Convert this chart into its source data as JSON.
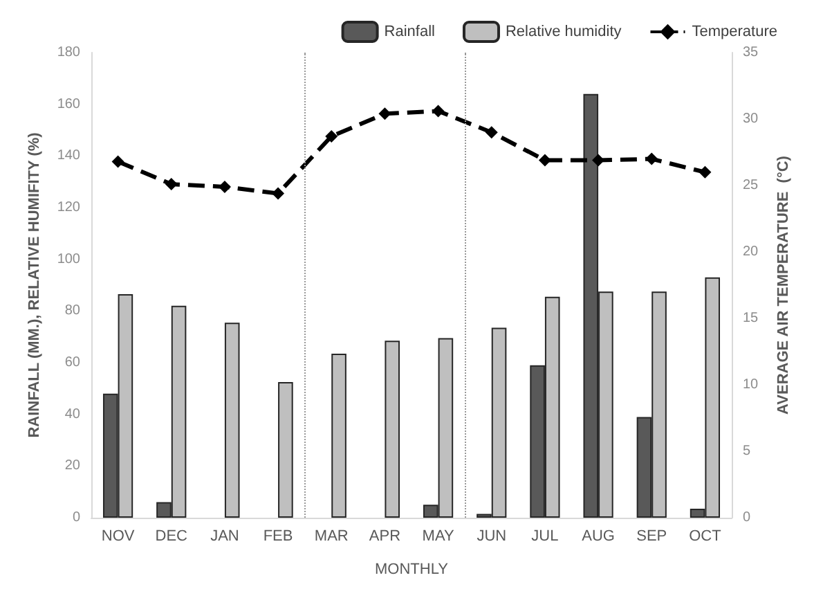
{
  "chart_data": {
    "type": "bar",
    "xlabel": "MONTHLY",
    "ylabel": "RAINFALL (MM.), RELATIVE HUMIFITY (%)",
    "y2label": "AVERAGE AIR TEMPERATURE  (°C)",
    "categories": [
      "NOV",
      "DEC",
      "JAN",
      "FEB",
      "MAR",
      "APR",
      "MAY",
      "JUN",
      "JUL",
      "AUG",
      "SEP",
      "OCT"
    ],
    "series": [
      {
        "name": "Rainfall",
        "color": "#595959",
        "values": [
          48,
          6,
          0,
          0,
          0,
          0,
          5,
          1.5,
          59,
          164,
          39,
          3.5
        ]
      },
      {
        "name": "Relative humidity",
        "color": "#bfbfbf",
        "values": [
          86.5,
          82,
          75.5,
          52.5,
          63.5,
          68.5,
          69.5,
          73.5,
          85.5,
          87.5,
          87.5,
          93
        ]
      },
      {
        "name": "Temperature",
        "type": "line",
        "axis": "y2",
        "color": "#000000",
        "line_style": "dashed",
        "marker": "diamond",
        "values": [
          26.8,
          25.1,
          24.9,
          24.4,
          28.7,
          30.4,
          30.6,
          29.0,
          26.9,
          26.9,
          27.0,
          26.0
        ]
      }
    ],
    "ylim": [
      0,
      180
    ],
    "yticks": [
      0,
      20,
      40,
      60,
      80,
      100,
      120,
      140,
      160,
      180
    ],
    "y2lim": [
      0,
      35
    ],
    "y2ticks": [
      0,
      5,
      10,
      15,
      20,
      25,
      30,
      35
    ],
    "legend": "top right",
    "grid": false
  }
}
